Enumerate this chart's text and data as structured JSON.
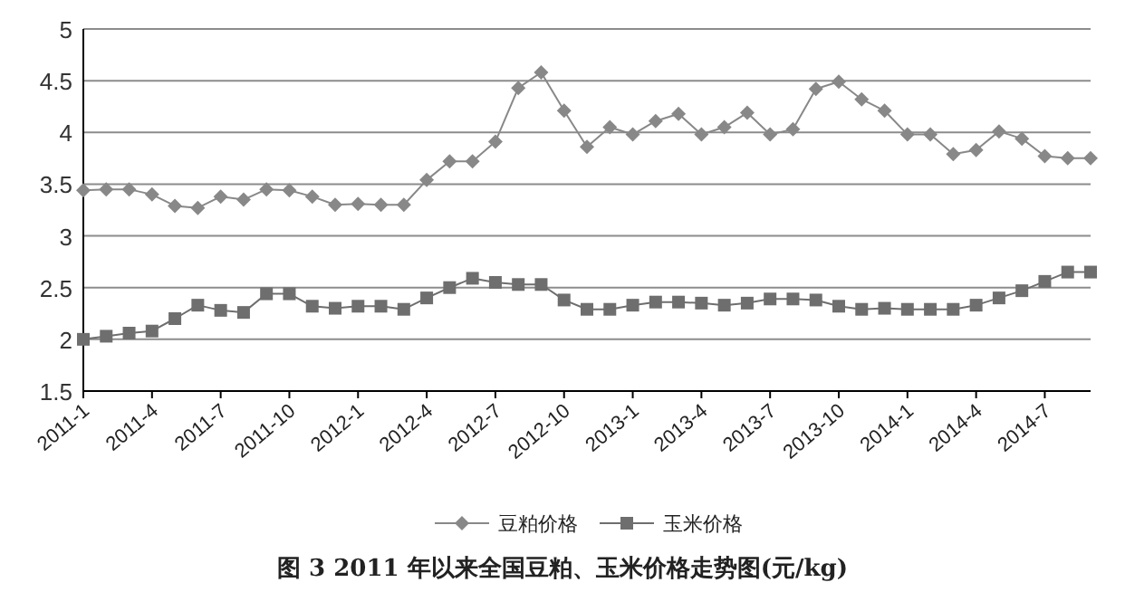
{
  "chart_data": {
    "type": "line",
    "title": "图 3  2011 年以来全国豆粕、玉米价格走势图(元/kg)",
    "categories": [
      "2011-1",
      null,
      null,
      "2011-4",
      null,
      null,
      "2011-7",
      null,
      null,
      "2011-10",
      null,
      null,
      "2012-1",
      null,
      null,
      "2012-4",
      null,
      null,
      "2012-7",
      null,
      null,
      "2012-10",
      null,
      null,
      "2013-1",
      null,
      null,
      "2013-4",
      null,
      null,
      "2013-7",
      null,
      null,
      "2013-10",
      null,
      null,
      "2014-1",
      null,
      null,
      "2014-4",
      null,
      null,
      "2014-7",
      null,
      null
    ],
    "series": [
      {
        "name": "豆粕价格",
        "color": "#888888",
        "marker": "diamond",
        "values": [
          3.44,
          3.45,
          3.45,
          3.4,
          3.29,
          3.27,
          3.38,
          3.35,
          3.45,
          3.44,
          3.38,
          3.3,
          3.31,
          3.3,
          3.3,
          3.54,
          3.72,
          3.72,
          3.91,
          4.43,
          4.58,
          4.21,
          3.86,
          4.05,
          3.98,
          4.11,
          4.18,
          3.98,
          4.05,
          4.19,
          3.98,
          4.03,
          4.42,
          4.49,
          4.32,
          4.21,
          3.98,
          3.98,
          3.79,
          3.83,
          4.01,
          3.94,
          3.77,
          3.75,
          3.75
        ]
      },
      {
        "name": "玉米价格",
        "color": "#6e6e6e",
        "marker": "square",
        "values": [
          2.0,
          2.03,
          2.06,
          2.08,
          2.2,
          2.33,
          2.28,
          2.26,
          2.44,
          2.44,
          2.32,
          2.3,
          2.32,
          2.32,
          2.29,
          2.4,
          2.5,
          2.59,
          2.55,
          2.53,
          2.53,
          2.38,
          2.29,
          2.29,
          2.33,
          2.36,
          2.36,
          2.35,
          2.33,
          2.35,
          2.39,
          2.39,
          2.38,
          2.32,
          2.29,
          2.3,
          2.29,
          2.29,
          2.29,
          2.33,
          2.4,
          2.47,
          2.56,
          2.65,
          2.65
        ]
      }
    ],
    "ylim": [
      1.5,
      5
    ],
    "yticks": [
      1.5,
      2,
      2.5,
      3,
      3.5,
      4,
      4.5,
      5
    ],
    "grid": "y",
    "legend": "bottom",
    "line_style": "solid"
  }
}
